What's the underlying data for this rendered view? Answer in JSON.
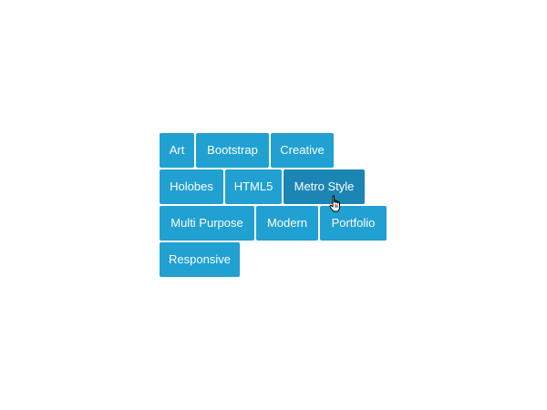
{
  "tags": [
    {
      "label": "Art"
    },
    {
      "label": "Bootstrap"
    },
    {
      "label": "Creative"
    },
    {
      "label": "Holobes"
    },
    {
      "label": "HTML5"
    },
    {
      "label": "Metro Style"
    },
    {
      "label": "Multi Purpose"
    },
    {
      "label": "Modern"
    },
    {
      "label": "Portfolio"
    },
    {
      "label": "Responsive"
    }
  ],
  "colors": {
    "tag_background": "#21a0d2",
    "tag_hover_background": "#1b86b3",
    "tag_text": "#ffffff",
    "page_background": "#ffffff"
  },
  "hovered_tag": "Metro Style",
  "cursor_icon": "hand-pointer-icon"
}
